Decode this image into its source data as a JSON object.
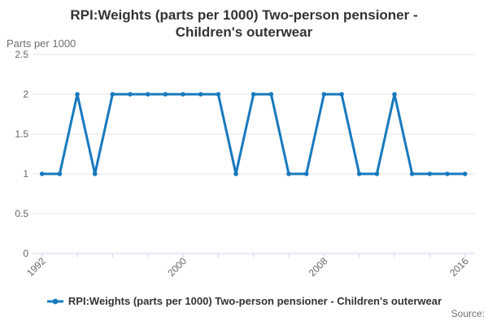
{
  "header": {
    "title_line1": "RPI:Weights (parts per 1000) Two-person pensioner -",
    "title_line2": "Children's outerwear"
  },
  "source_label": "Source:",
  "legend": {
    "label": "RPI:Weights (parts per 1000) Two-person pensioner - Children's outerwear"
  },
  "colors": {
    "line": "#1879be",
    "grid": "#e6e6e6",
    "axis": "#ccd6eb",
    "tick_label": "#666666",
    "title": "#333333"
  },
  "chart_data": {
    "type": "line",
    "title": "RPI:Weights (parts per 1000) Two-person pensioner - Children's outerwear",
    "xlabel": "",
    "ylabel": "Parts per 1000",
    "x": [
      1992,
      1993,
      1994,
      1995,
      1996,
      1997,
      1998,
      1999,
      2000,
      2001,
      2002,
      2003,
      2004,
      2005,
      2006,
      2007,
      2008,
      2009,
      2010,
      2011,
      2012,
      2013,
      2014,
      2015,
      2016
    ],
    "series": [
      {
        "name": "RPI:Weights (parts per 1000) Two-person pensioner - Children's outerwear",
        "values": [
          1,
          1,
          2,
          1,
          2,
          2,
          2,
          2,
          2,
          2,
          2,
          1,
          2,
          2,
          1,
          1,
          2,
          2,
          1,
          1,
          2,
          1,
          1,
          1,
          1
        ]
      }
    ],
    "ylim": [
      0,
      2.5
    ],
    "yticks": [
      0,
      0.5,
      1,
      1.5,
      2,
      2.5
    ],
    "ytick_labels": [
      "0",
      "0.5",
      "1",
      "1.5",
      "2",
      "2.5"
    ],
    "xticks": [
      1992,
      1994,
      1996,
      1998,
      2000,
      2002,
      2004,
      2006,
      2008,
      2010,
      2012,
      2014,
      2016
    ],
    "xtick_labels_shown": [
      "1992",
      "2000",
      "2008",
      "2016"
    ],
    "grid": "horizontal",
    "legend_position": "bottom",
    "markers": true
  }
}
